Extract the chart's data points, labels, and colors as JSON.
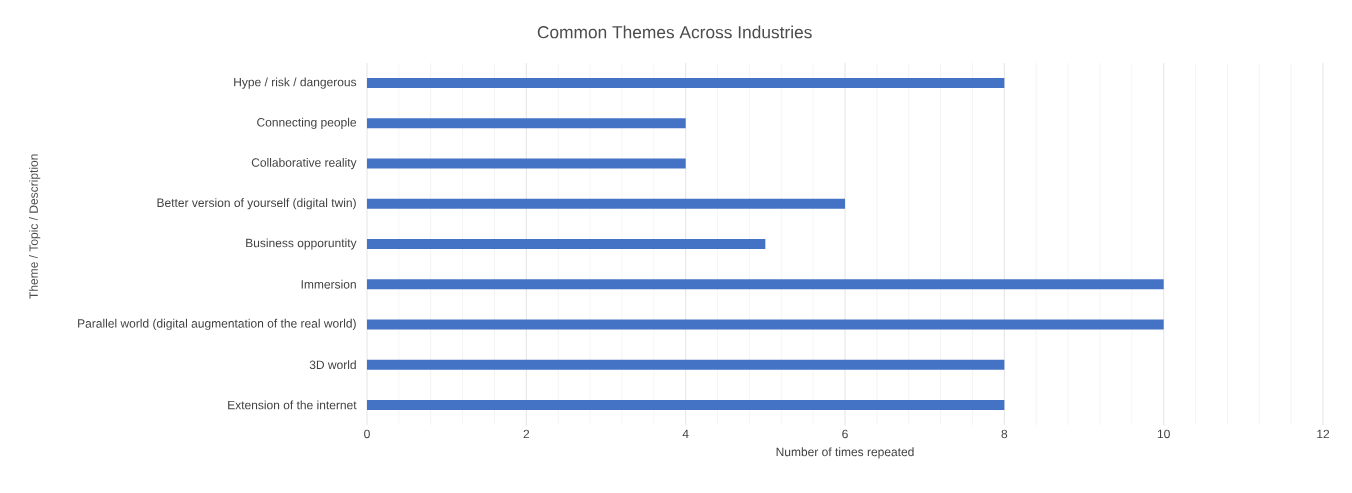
{
  "chart_data": {
    "type": "bar",
    "orientation": "horizontal",
    "title": "Common Themes Across Industries",
    "xlabel": "Number  of times repeated",
    "ylabel": "Theme / Topic / Description",
    "categories": [
      "Hype / risk / dangerous",
      "Connecting people",
      "Collaborative reality",
      "Better version of yourself (digital twin)",
      "Business opporuntity",
      "Immersion",
      "Parallel world (digital augmentation of the real world)",
      "3D world",
      "Extension of the internet"
    ],
    "values": [
      8,
      4,
      4,
      6,
      5,
      10,
      10,
      8,
      8
    ],
    "color": "#4472c4",
    "xlim": [
      0,
      12
    ],
    "xticks": [
      0,
      2,
      4,
      6,
      8,
      10,
      12
    ],
    "grid": "x"
  }
}
